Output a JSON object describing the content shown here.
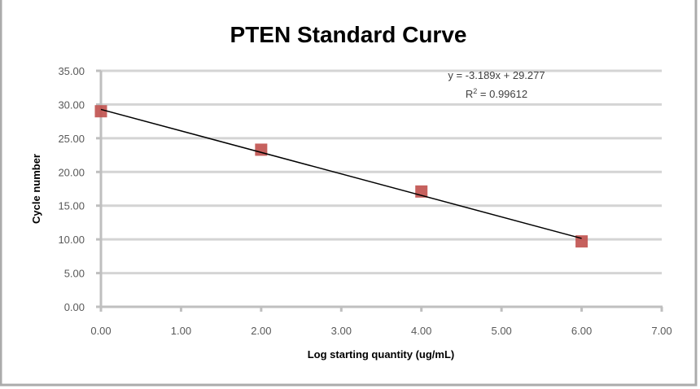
{
  "chart_data": {
    "type": "scatter",
    "title": "PTEN Standard Curve",
    "xlabel": "Log starting quantity (ug/mL)",
    "ylabel": "Cycle number",
    "xlim": [
      0,
      7
    ],
    "ylim": [
      0,
      35
    ],
    "x_ticks": [
      0,
      1,
      2,
      3,
      4,
      5,
      6,
      7
    ],
    "y_ticks": [
      0,
      5,
      10,
      15,
      20,
      25,
      30,
      35
    ],
    "x_tick_labels": [
      "0.00",
      "1.00",
      "2.00",
      "3.00",
      "4.00",
      "5.00",
      "6.00",
      "7.00"
    ],
    "y_tick_labels": [
      "0.00",
      "5.00",
      "10.00",
      "15.00",
      "20.00",
      "25.00",
      "30.00",
      "35.00"
    ],
    "grid": "horizontal",
    "legend": "none",
    "series": [
      {
        "name": "Cycle number",
        "marker": "square",
        "color": "#C0504D",
        "x": [
          0.0,
          2.0,
          4.0,
          6.0
        ],
        "y": [
          29.0,
          23.3,
          17.1,
          9.7
        ]
      }
    ],
    "trendline": {
      "type": "linear",
      "slope": -3.189,
      "intercept": 29.277,
      "x_range": [
        0,
        6
      ],
      "color": "#000000",
      "equation_label": "y = -3.189x + 29.277",
      "r2_label_prefix": "R",
      "r2_label_sup": "2",
      "r2_label_suffix": " = 0.99612"
    },
    "colors": {
      "gridline": "#D4D4D4",
      "axis": "#BFBFBF",
      "border": "#ABABAB"
    }
  }
}
